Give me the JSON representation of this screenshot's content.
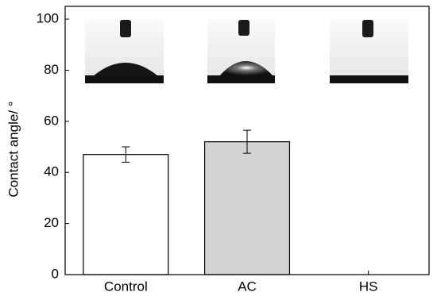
{
  "chart_data": {
    "type": "bar",
    "y_label": "Contact angle/ °",
    "categories": [
      "Control",
      "AC",
      "HS"
    ],
    "values": [
      47,
      52,
      0
    ],
    "errors": [
      3,
      4.5,
      null
    ],
    "colors": [
      "#ffffff",
      "#d3d3d3",
      "#ffffff"
    ],
    "ylim": [
      0,
      105
    ],
    "yticks": [
      0,
      20,
      40,
      60,
      80,
      100
    ],
    "grid": false
  }
}
